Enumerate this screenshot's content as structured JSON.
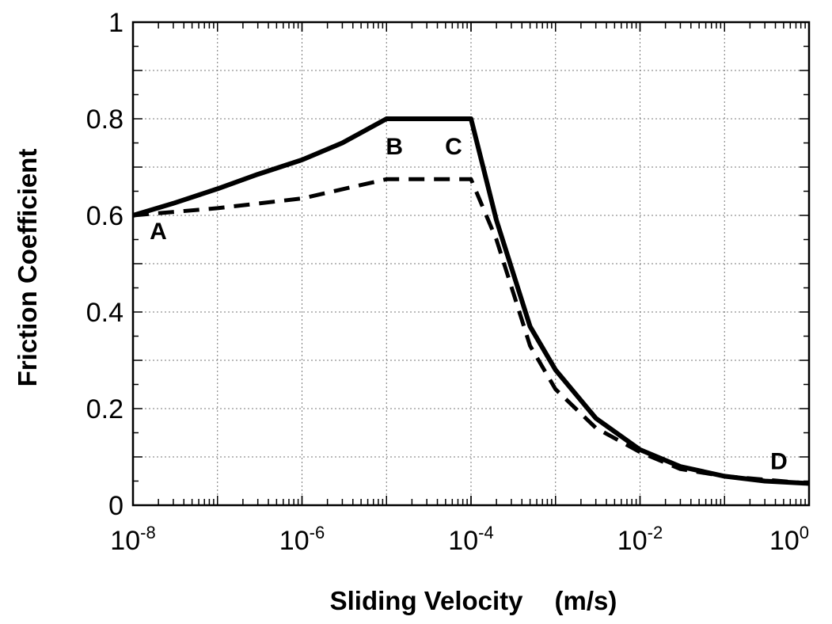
{
  "chart_data": {
    "type": "line",
    "xlabel": "Sliding Velocity",
    "xunit": "(m/s)",
    "ylabel": "Friction Coefficient",
    "xscale": "log",
    "xlim": [
      1e-08,
      1
    ],
    "ylim": [
      0,
      1
    ],
    "grid": true,
    "x_ticks": [
      {
        "base": "10",
        "exp": "-8",
        "value": 1e-08
      },
      {
        "base": "10",
        "exp": "-6",
        "value": 1e-06
      },
      {
        "base": "10",
        "exp": "-4",
        "value": 0.0001
      },
      {
        "base": "10",
        "exp": "-2",
        "value": 0.01
      },
      {
        "base": "10",
        "exp": "0",
        "value": 1
      }
    ],
    "y_ticks": [
      {
        "label": "0",
        "value": 0
      },
      {
        "label": "0.2",
        "value": 0.2
      },
      {
        "label": "0.4",
        "value": 0.4
      },
      {
        "label": "0.6",
        "value": 0.6
      },
      {
        "label": "0.8",
        "value": 0.8
      },
      {
        "label": "1",
        "value": 1
      }
    ],
    "series": [
      {
        "style": "solid",
        "points": [
          [
            1e-08,
            0.6
          ],
          [
            3e-08,
            0.625
          ],
          [
            1e-07,
            0.655
          ],
          [
            3e-07,
            0.685
          ],
          [
            1e-06,
            0.715
          ],
          [
            3e-06,
            0.75
          ],
          [
            1e-05,
            0.8
          ],
          [
            0.0001,
            0.8
          ],
          [
            0.0002,
            0.59
          ],
          [
            0.0005,
            0.37
          ],
          [
            0.001,
            0.28
          ],
          [
            0.003,
            0.18
          ],
          [
            0.01,
            0.115
          ],
          [
            0.03,
            0.08
          ],
          [
            0.1,
            0.06
          ],
          [
            0.3,
            0.05
          ],
          [
            1,
            0.045
          ]
        ]
      },
      {
        "style": "dashed",
        "points": [
          [
            1e-08,
            0.6
          ],
          [
            1e-07,
            0.615
          ],
          [
            1e-06,
            0.635
          ],
          [
            1e-05,
            0.675
          ],
          [
            0.0001,
            0.675
          ],
          [
            0.0002,
            0.55
          ],
          [
            0.0005,
            0.33
          ],
          [
            0.001,
            0.24
          ],
          [
            0.003,
            0.16
          ],
          [
            0.01,
            0.11
          ],
          [
            0.03,
            0.075
          ],
          [
            0.1,
            0.06
          ],
          [
            1,
            0.045
          ]
        ]
      }
    ],
    "annotations": [
      {
        "text": "A",
        "x": 1e-08,
        "y": 0.6
      },
      {
        "text": "B",
        "x": 1e-05,
        "y": 0.8
      },
      {
        "text": "C",
        "x": 0.0001,
        "y": 0.8
      },
      {
        "text": "D",
        "x": 1,
        "y": 0.045
      }
    ]
  }
}
